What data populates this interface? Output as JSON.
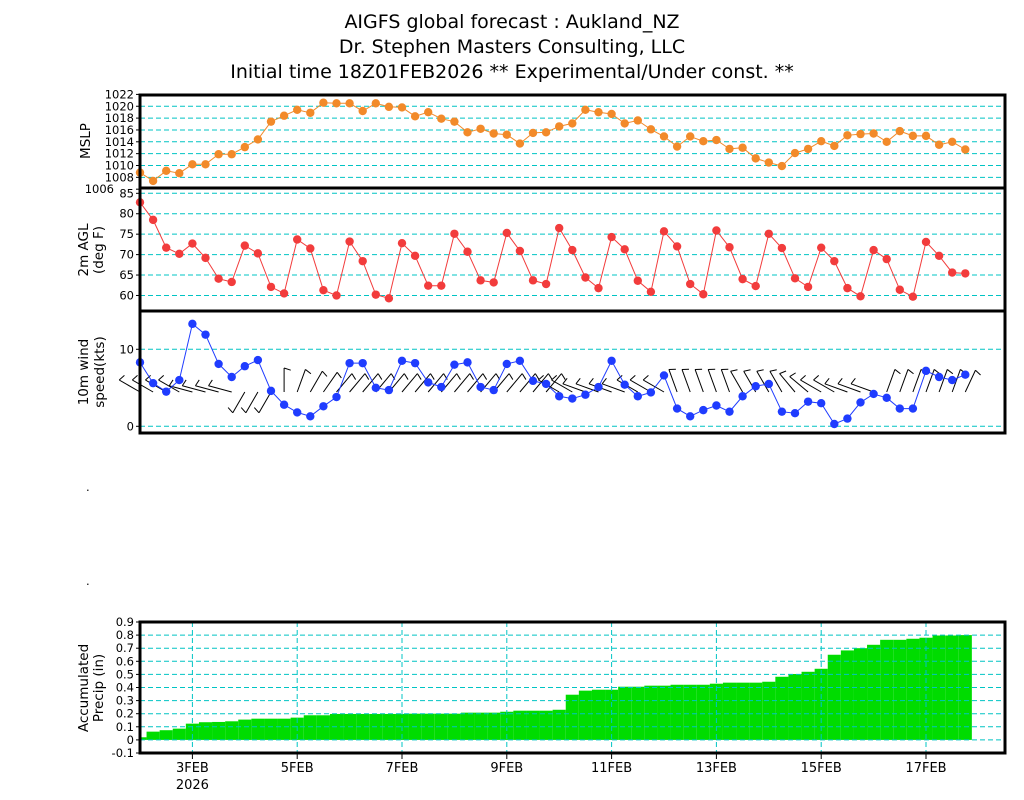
{
  "title": {
    "line1": "AIGFS global forecast : Aukland_NZ",
    "line2": "Dr. Stephen Masters Consulting, LLC",
    "line3": "Initial time 18Z01FEB2026  ** Experimental/Under const. **"
  },
  "stray_marks": [
    ".",
    "."
  ],
  "colors": {
    "grid": "#00c4c4",
    "mslp": "#f28a2a",
    "temp": "#f23c3c",
    "wind": "#1f3cff",
    "precip": "#00dc00",
    "barb": "#000000"
  },
  "chart_data": [
    {
      "type": "line",
      "name": "mslp",
      "ylabel": [
        "MSLP"
      ],
      "ylim": [
        1006.2,
        1021.9
      ],
      "yticks": [
        1006,
        1008,
        1010,
        1012,
        1014,
        1016,
        1018,
        1020,
        1022
      ],
      "ytick_labels": [
        "1006",
        "1008",
        "1010",
        "1012",
        "1014",
        "1016",
        "1018",
        "1020",
        "1022"
      ],
      "values": [
        1008.8,
        1007.4,
        1009.1,
        1008.7,
        1010.2,
        1010.2,
        1011.9,
        1011.9,
        1013.1,
        1014.4,
        1017.4,
        1018.4,
        1019.4,
        1018.9,
        1020.6,
        1020.5,
        1020.5,
        1019.2,
        1020.5,
        1019.9,
        1019.8,
        1018.3,
        1019.0,
        1017.9,
        1017.4,
        1015.6,
        1016.2,
        1015.4,
        1015.2,
        1013.7,
        1015.5,
        1015.6,
        1016.6,
        1017.1,
        1019.4,
        1019.0,
        1018.7,
        1017.1,
        1017.6,
        1016.1,
        1014.9,
        1013.2,
        1014.9,
        1014.1,
        1014.3,
        1012.8,
        1013.0,
        1011.2,
        1010.5,
        1009.9,
        1012.1,
        1012.8,
        1014.1,
        1013.3,
        1015.1,
        1015.3,
        1015.4,
        1014.0,
        1015.8,
        1015.0,
        1015.0,
        1013.5,
        1014.0,
        1012.7
      ]
    },
    {
      "type": "line",
      "name": "temperature",
      "ylabel": [
        "2m AGL",
        "(deg F)"
      ],
      "ylim": [
        56.2,
        86.3
      ],
      "yticks": [
        60,
        65,
        70,
        75,
        80,
        85
      ],
      "ytick_labels": [
        "60",
        "65",
        "70",
        "75",
        "80",
        "85"
      ],
      "values": [
        82.8,
        78.5,
        71.7,
        70.2,
        72.7,
        69.2,
        64.1,
        63.3,
        72.2,
        70.3,
        62.1,
        60.5,
        73.7,
        71.5,
        61.3,
        60.0,
        73.2,
        68.4,
        60.2,
        59.3,
        72.8,
        69.7,
        62.4,
        62.4,
        75.1,
        70.7,
        63.7,
        63.2,
        75.3,
        70.9,
        63.7,
        62.8,
        76.5,
        71.1,
        64.4,
        61.8,
        74.3,
        71.3,
        63.6,
        60.9,
        75.7,
        72.0,
        62.8,
        60.3,
        75.9,
        71.8,
        64.0,
        62.3,
        75.1,
        71.6,
        64.2,
        62.1,
        71.7,
        68.4,
        61.8,
        59.8,
        71.1,
        68.9,
        61.4,
        59.7,
        73.1,
        69.7,
        65.6,
        65.4
      ]
    },
    {
      "type": "line",
      "name": "wind",
      "ylabel": [
        "10m wind",
        "speed(kts)"
      ],
      "ylim": [
        -0.87,
        14.97
      ],
      "yticks": [
        0,
        10
      ],
      "ytick_labels": [
        "0",
        "10"
      ],
      "values": [
        8.3,
        5.6,
        4.5,
        6.0,
        13.3,
        11.9,
        8.1,
        6.4,
        7.8,
        8.6,
        4.6,
        2.8,
        1.8,
        1.3,
        2.6,
        3.8,
        8.2,
        8.2,
        5.0,
        4.7,
        8.5,
        8.2,
        5.7,
        5.1,
        8.0,
        8.3,
        5.1,
        4.7,
        8.1,
        8.5,
        5.9,
        5.5,
        3.9,
        3.6,
        4.1,
        5.1,
        8.5,
        5.4,
        3.9,
        4.4,
        6.6,
        2.3,
        1.3,
        2.1,
        2.7,
        1.9,
        3.9,
        5.2,
        5.5,
        1.9,
        1.7,
        3.2,
        3.0,
        0.3,
        1.0,
        3.1,
        4.2,
        3.7,
        2.3,
        2.3,
        7.2,
        6.4,
        6.0,
        6.7
      ],
      "barb_dir_deg": [
        300,
        300,
        300,
        300,
        285,
        285,
        285,
        285,
        210,
        210,
        210,
        0,
        20,
        30,
        35,
        40,
        40,
        40,
        40,
        40,
        40,
        40,
        40,
        40,
        40,
        40,
        40,
        40,
        40,
        40,
        40,
        40,
        300,
        300,
        290,
        290,
        290,
        290,
        300,
        300,
        300,
        340,
        340,
        340,
        340,
        340,
        330,
        330,
        330,
        330,
        320,
        310,
        300,
        300,
        290,
        290,
        290,
        20,
        20,
        20,
        20,
        20,
        20,
        25
      ]
    },
    {
      "type": "bar",
      "name": "accumulated-precip",
      "ylabel": [
        "Accumulated",
        "Precip (in)"
      ],
      "ylim": [
        -0.1,
        0.9
      ],
      "yticks": [
        -0.1,
        0,
        0.1,
        0.2,
        0.3,
        0.4,
        0.5,
        0.6,
        0.7,
        0.8,
        0.9
      ],
      "ytick_labels": [
        "-0.1",
        "0",
        "0.1",
        "0.2",
        "0.3",
        "0.4",
        "0.5",
        "0.6",
        "0.7",
        "0.8",
        "0.9"
      ],
      "values": [
        0.02,
        0.063,
        0.074,
        0.086,
        0.124,
        0.135,
        0.137,
        0.142,
        0.155,
        0.162,
        0.162,
        0.162,
        0.17,
        0.188,
        0.188,
        0.198,
        0.198,
        0.198,
        0.198,
        0.198,
        0.198,
        0.2,
        0.2,
        0.2,
        0.2,
        0.208,
        0.208,
        0.208,
        0.215,
        0.223,
        0.223,
        0.223,
        0.23,
        0.345,
        0.376,
        0.383,
        0.383,
        0.406,
        0.406,
        0.414,
        0.414,
        0.421,
        0.421,
        0.421,
        0.429,
        0.437,
        0.437,
        0.437,
        0.444,
        0.482,
        0.503,
        0.52,
        0.543,
        0.65,
        0.683,
        0.7,
        0.726,
        0.764,
        0.764,
        0.772,
        0.78,
        0.797,
        0.797,
        0.8
      ],
      "x_start": "00Z02FEB2026",
      "x_step_hours": 6,
      "xtick_index": [
        4,
        12,
        20,
        28,
        36,
        44,
        52,
        60
      ],
      "xtick_labels": [
        "3FEB",
        "5FEB",
        "7FEB",
        "9FEB",
        "11FEB",
        "13FEB",
        "15FEB",
        "17FEB"
      ],
      "xyear_label": "2026"
    }
  ]
}
